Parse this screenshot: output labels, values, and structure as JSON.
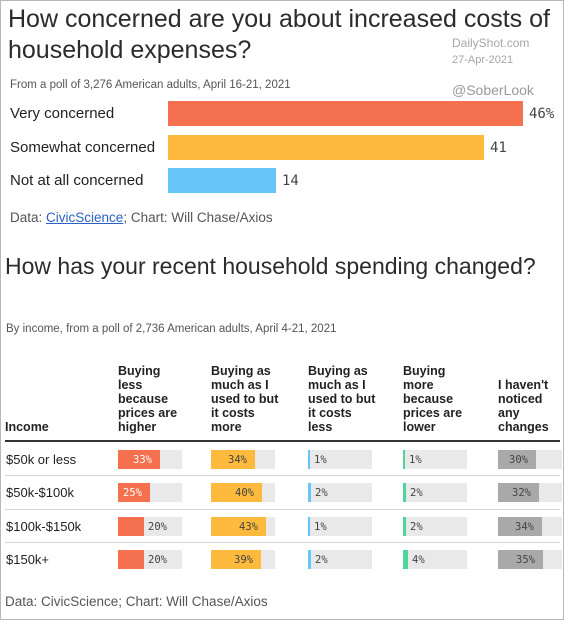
{
  "chart1": {
    "title": "How concerned are you about increased costs of household expenses?",
    "subtitle": "From a poll of 3,276 American adults, April 16-21, 2021",
    "source_prefix": "Data: ",
    "source_link": "CivicScience",
    "source_suffix": "; Chart: Will Chase/Axios"
  },
  "watermark": {
    "site": "DailyShot.com",
    "date": "27-Apr-2021",
    "handle": "@SoberLook"
  },
  "chart_data": [
    {
      "type": "bar",
      "orientation": "horizontal",
      "title": "How concerned are you about increased costs of household expenses?",
      "subtitle": "From a poll of 3,276 American adults, April 16-21, 2021",
      "categories": [
        "Very concerned",
        "Somewhat concerned",
        "Not at all concerned"
      ],
      "values": [
        46,
        41,
        14
      ],
      "value_labels": [
        "46%",
        "41",
        "14"
      ],
      "colors": [
        "#f4704f",
        "#fdba3d",
        "#67c5f9"
      ],
      "xlim": [
        0,
        46
      ],
      "source": "Data: CivicScience; Chart: Will Chase/Axios"
    },
    {
      "type": "table",
      "title": "How has your recent household spending changed?",
      "subtitle": "By income, from a poll of 2,736 American adults, April 4-21, 2021",
      "row_header": "Income",
      "rows": [
        "$50k or less",
        "$50k-$100k",
        "$100k-$150k",
        "$150k+"
      ],
      "columns": [
        "Buying less because prices are higher",
        "Buying as much as I used to but it costs more",
        "Buying as much as I used to but it costs less",
        "Buying more because prices are lower",
        "I haven't noticed any changes"
      ],
      "column_labels": [
        [
          "Buying",
          "less",
          "because",
          "prices are",
          "higher"
        ],
        [
          "Buying as",
          "much as I",
          "used to but",
          "it costs",
          "more"
        ],
        [
          "Buying as",
          "much as I",
          "used to but",
          "it costs",
          "less"
        ],
        [
          "Buying",
          "more",
          "because",
          "prices are",
          "lower"
        ],
        [
          "I haven't",
          "noticed",
          "any",
          "changes"
        ]
      ],
      "column_colors": [
        "#f4704f",
        "#fdba3d",
        "#67c5f9",
        "#4fd49a",
        "#a9a9a9"
      ],
      "values": [
        [
          33,
          34,
          1,
          1,
          30
        ],
        [
          25,
          40,
          2,
          2,
          32
        ],
        [
          20,
          43,
          1,
          2,
          34
        ],
        [
          20,
          39,
          2,
          4,
          35
        ]
      ],
      "max_value": 50,
      "source": "Data: CivicScience; Chart: Will Chase/Axios"
    }
  ]
}
